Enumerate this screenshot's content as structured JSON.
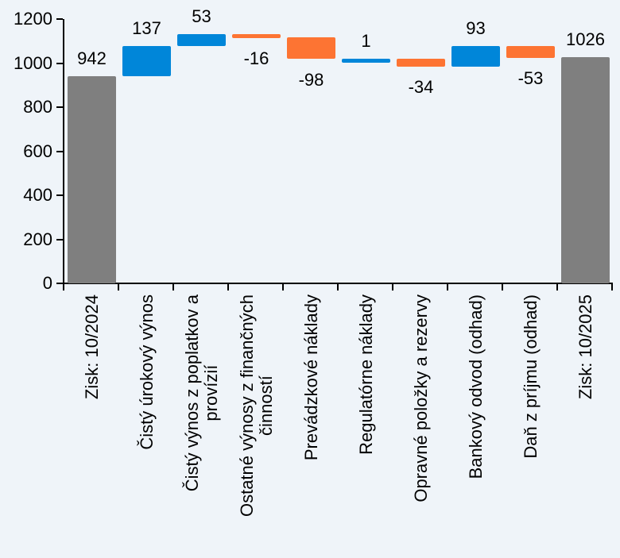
{
  "chart_data": {
    "type": "waterfall",
    "title": "",
    "categories": [
      "Zisk: 10/2024",
      "Čistý úrokový výnos",
      "Čistý výnos z poplatkov a provízií",
      "Ostatné výnosy z finančných činností",
      "Prevádzkové náklady",
      "Regulatórne náklady",
      "Opravné položky a rezervy",
      "Bankový odvod (odhad)",
      "Daň z príjmu (odhad)",
      "Zisk: 10/2025"
    ],
    "category_label_lines": [
      [
        "Zisk: 10/2024"
      ],
      [
        "Čistý úrokový výnos"
      ],
      [
        "Čistý výnos z poplatkov a",
        "provízií"
      ],
      [
        "Ostatné výnosy z finančných",
        "činností"
      ],
      [
        "Prevádzkové náklady"
      ],
      [
        "Regulatórne náklady"
      ],
      [
        "Opravné položky a rezervy"
      ],
      [
        "Bankový odvod (odhad)"
      ],
      [
        "Daň z príjmu (odhad)"
      ],
      [
        "Zisk: 10/2025"
      ]
    ],
    "values": [
      942,
      137,
      53,
      -16,
      -98,
      1,
      -34,
      93,
      -53,
      1026
    ],
    "kinds": [
      "total",
      "delta",
      "delta",
      "delta",
      "delta",
      "delta",
      "delta",
      "delta",
      "delta",
      "total"
    ],
    "data_labels": [
      "942",
      "137",
      "53",
      "-16",
      "-98",
      "1",
      "-34",
      "93",
      "-53",
      "1026"
    ],
    "y_axis": {
      "tick_values": [
        0,
        200,
        400,
        600,
        800,
        1000,
        1200
      ],
      "tick_labels": [
        "0",
        "200",
        "400",
        "600",
        "800",
        "1000",
        "1200"
      ],
      "range": [
        0,
        1200
      ]
    },
    "xlabel": "",
    "ylabel": "",
    "grid": false,
    "legend": false,
    "colors": {
      "increase": "#0086D9",
      "decrease": "#FD7433",
      "total": "#7F7F7F",
      "axis": "#000000",
      "text": "#000000",
      "background": "#EFF4F9"
    }
  }
}
